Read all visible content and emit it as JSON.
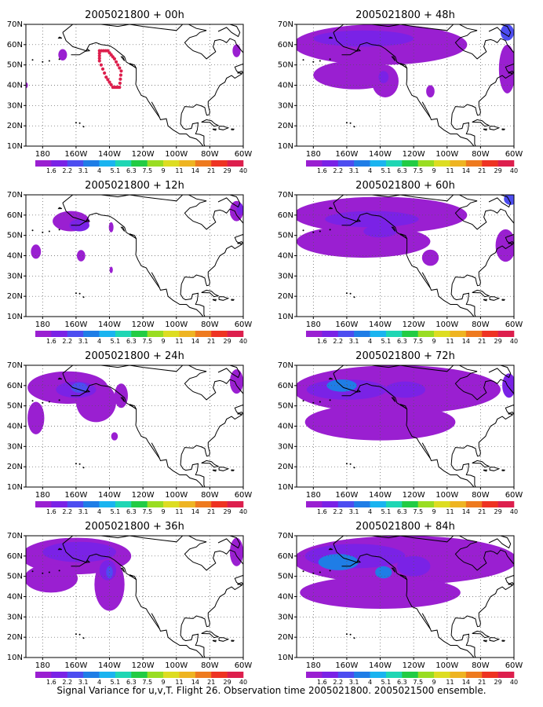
{
  "caption": "Signal Variance for u,v,T. Flight 26. Observation time 2005021800. 2005021500 ensemble.",
  "colorbar": {
    "labels": [
      "1.6",
      "2.2",
      "3.1",
      "4",
      "5.1",
      "6.3",
      "7.5",
      "9",
      "11",
      "14",
      "21",
      "29",
      "40"
    ],
    "colors": [
      "#9a1fd1",
      "#7a22e6",
      "#4d4df0",
      "#1f7de6",
      "#1ab4f0",
      "#1fd6b4",
      "#22cc44",
      "#99dd22",
      "#dddd22",
      "#eeb422",
      "#ee7a1f",
      "#ee3322",
      "#dd1f4d"
    ]
  },
  "axes": {
    "lat_labels": [
      "70N",
      "60N",
      "50N",
      "40N",
      "30N",
      "20N",
      "10N"
    ],
    "lon_labels": [
      "180",
      "160W",
      "140W",
      "120W",
      "100W",
      "80W",
      "60W"
    ]
  },
  "panels": [
    {
      "title": "2005021800 + 00h",
      "blobs": [
        {
          "lon": -168,
          "lat": 55,
          "rx": 2.6,
          "ry": 2.8,
          "lvl": 0
        },
        {
          "lon": -64,
          "lat": 57,
          "rx": 2.4,
          "ry": 3.2,
          "lvl": 0
        },
        {
          "lon": -190,
          "lat": 40,
          "rx": 1.2,
          "ry": 1.5,
          "lvl": 0
        }
      ],
      "track": true
    },
    {
      "title": "2005021800 + 12h",
      "blobs": [
        {
          "lon": -163,
          "lat": 57,
          "rx": 11,
          "ry": 5,
          "lvl": 0
        },
        {
          "lon": -158,
          "lat": 55,
          "rx": 6,
          "ry": 3,
          "lvl": 1
        },
        {
          "lon": -184,
          "lat": 42,
          "rx": 3,
          "ry": 3.5,
          "lvl": 0
        },
        {
          "lon": -157,
          "lat": 40,
          "rx": 2.5,
          "ry": 2.8,
          "lvl": 0
        },
        {
          "lon": -139,
          "lat": 54,
          "rx": 1.4,
          "ry": 2.5,
          "lvl": 0
        },
        {
          "lon": -139,
          "lat": 33,
          "rx": 1,
          "ry": 1.6,
          "lvl": 0
        },
        {
          "lon": -64,
          "lat": 62,
          "rx": 4,
          "ry": 5,
          "lvl": 0
        },
        {
          "lon": -62,
          "lat": 63,
          "rx": 2,
          "ry": 3,
          "lvl": 1
        }
      ],
      "track": false
    },
    {
      "title": "2005021800 + 24h",
      "blobs": [
        {
          "lon": -165,
          "lat": 59,
          "rx": 24,
          "ry": 8,
          "lvl": 0
        },
        {
          "lon": -148,
          "lat": 52,
          "rx": 12,
          "ry": 10,
          "lvl": 0
        },
        {
          "lon": -160,
          "lat": 58,
          "rx": 12,
          "ry": 4,
          "lvl": 1
        },
        {
          "lon": -158,
          "lat": 59,
          "rx": 5,
          "ry": 2.5,
          "lvl": 2
        },
        {
          "lon": -184,
          "lat": 44,
          "rx": 5,
          "ry": 8,
          "lvl": 0
        },
        {
          "lon": -137,
          "lat": 35,
          "rx": 2,
          "ry": 2,
          "lvl": 0
        },
        {
          "lon": -133,
          "lat": 55,
          "rx": 4,
          "ry": 6,
          "lvl": 0
        },
        {
          "lon": -64,
          "lat": 62,
          "rx": 4,
          "ry": 6,
          "lvl": 0
        }
      ],
      "track": false
    },
    {
      "title": "2005021800 + 36h",
      "blobs": [
        {
          "lon": -160,
          "lat": 60,
          "rx": 33,
          "ry": 9,
          "lvl": 0
        },
        {
          "lon": -175,
          "lat": 49,
          "rx": 16,
          "ry": 7,
          "lvl": 0
        },
        {
          "lon": -140,
          "lat": 46,
          "rx": 9,
          "ry": 13,
          "lvl": 0
        },
        {
          "lon": -158,
          "lat": 62,
          "rx": 22,
          "ry": 5,
          "lvl": 1
        },
        {
          "lon": -141,
          "lat": 53,
          "rx": 5,
          "ry": 5,
          "lvl": 1
        },
        {
          "lon": -140,
          "lat": 52,
          "rx": 2,
          "ry": 3,
          "lvl": 2
        },
        {
          "lon": -64,
          "lat": 62,
          "rx": 4,
          "ry": 7,
          "lvl": 0
        }
      ],
      "track": false
    },
    {
      "title": "2005021800 + 48h",
      "blobs": [
        {
          "lon": -140,
          "lat": 60,
          "rx": 52,
          "ry": 10,
          "lvl": 0
        },
        {
          "lon": -155,
          "lat": 45,
          "rx": 25,
          "ry": 7,
          "lvl": 0
        },
        {
          "lon": -137,
          "lat": 42,
          "rx": 8,
          "ry": 8,
          "lvl": 0
        },
        {
          "lon": -110,
          "lat": 37,
          "rx": 2.5,
          "ry": 3,
          "lvl": 0
        },
        {
          "lon": -64,
          "lat": 48,
          "rx": 5,
          "ry": 12,
          "lvl": 0
        },
        {
          "lon": -150,
          "lat": 63,
          "rx": 30,
          "ry": 4,
          "lvl": 1
        },
        {
          "lon": -138,
          "lat": 44,
          "rx": 3,
          "ry": 3,
          "lvl": 1
        },
        {
          "lon": -64,
          "lat": 66,
          "rx": 4,
          "ry": 4,
          "lvl": 2
        }
      ],
      "track": false
    },
    {
      "title": "2005021800 + 60h",
      "blobs": [
        {
          "lon": -140,
          "lat": 60,
          "rx": 52,
          "ry": 9,
          "lvl": 0
        },
        {
          "lon": -150,
          "lat": 47,
          "rx": 40,
          "ry": 8,
          "lvl": 0
        },
        {
          "lon": -110,
          "lat": 39,
          "rx": 5,
          "ry": 4,
          "lvl": 0
        },
        {
          "lon": -65,
          "lat": 45,
          "rx": 6,
          "ry": 8,
          "lvl": 0
        },
        {
          "lon": -145,
          "lat": 58,
          "rx": 28,
          "ry": 4,
          "lvl": 1
        },
        {
          "lon": -140,
          "lat": 52,
          "rx": 10,
          "ry": 3,
          "lvl": 1
        },
        {
          "lon": -62,
          "lat": 68,
          "rx": 4,
          "ry": 3,
          "lvl": 2
        }
      ],
      "track": false
    },
    {
      "title": "2005021800 + 72h",
      "blobs": [
        {
          "lon": -130,
          "lat": 58,
          "rx": 62,
          "ry": 12,
          "lvl": 0
        },
        {
          "lon": -140,
          "lat": 42,
          "rx": 45,
          "ry": 9,
          "lvl": 0
        },
        {
          "lon": -160,
          "lat": 58,
          "rx": 24,
          "ry": 5,
          "lvl": 1
        },
        {
          "lon": -125,
          "lat": 58,
          "rx": 12,
          "ry": 4,
          "lvl": 1
        },
        {
          "lon": -163,
          "lat": 60,
          "rx": 9,
          "ry": 3,
          "lvl": 3
        },
        {
          "lon": -63,
          "lat": 60,
          "rx": 4,
          "ry": 6,
          "lvl": 1
        }
      ],
      "track": false
    },
    {
      "title": "2005021800 + 84h",
      "blobs": [
        {
          "lon": -125,
          "lat": 58,
          "rx": 67,
          "ry": 12,
          "lvl": 0
        },
        {
          "lon": -140,
          "lat": 42,
          "rx": 48,
          "ry": 8,
          "lvl": 0
        },
        {
          "lon": -155,
          "lat": 60,
          "rx": 30,
          "ry": 6,
          "lvl": 1
        },
        {
          "lon": -120,
          "lat": 55,
          "rx": 10,
          "ry": 5,
          "lvl": 1
        },
        {
          "lon": -165,
          "lat": 57,
          "rx": 12,
          "ry": 4,
          "lvl": 3
        },
        {
          "lon": -138,
          "lat": 52,
          "rx": 5,
          "ry": 3,
          "lvl": 3
        }
      ],
      "track": false
    }
  ]
}
